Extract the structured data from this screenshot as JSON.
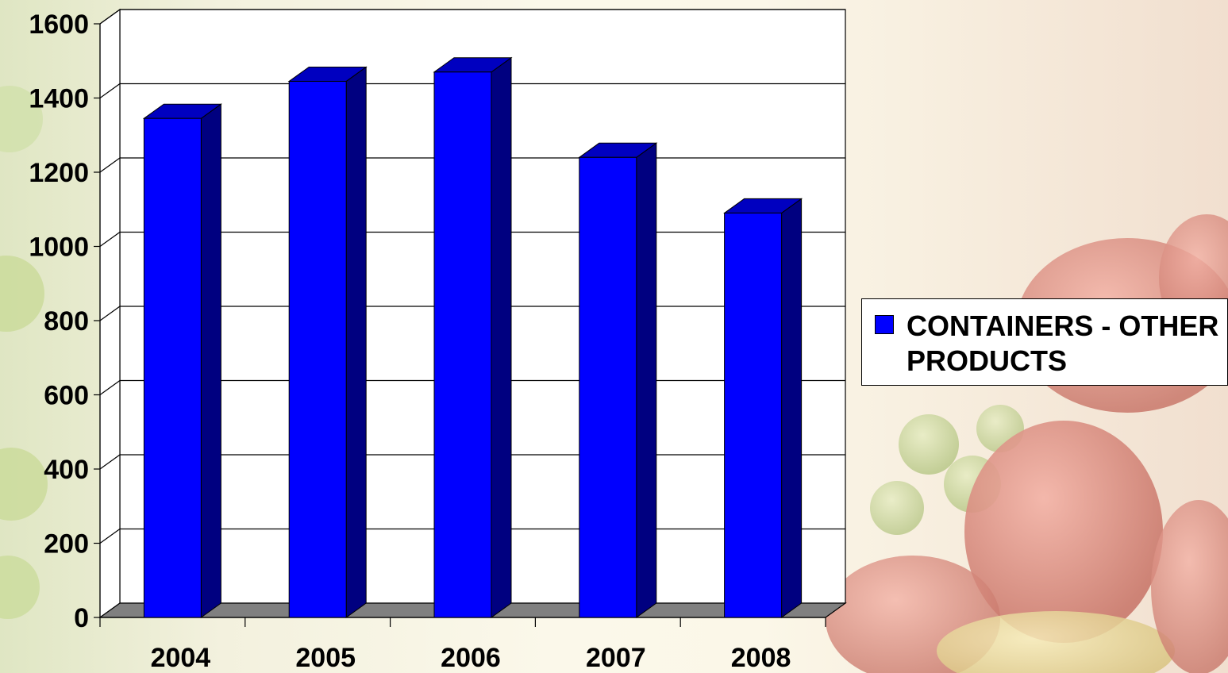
{
  "chart_data": {
    "type": "bar",
    "title": "",
    "xlabel": "",
    "ylabel": "",
    "categories": [
      "2004",
      "2005",
      "2006",
      "2007",
      "2008"
    ],
    "series": [
      {
        "name": "CONTAINERS - OTHER PRODUCTS",
        "values": [
          1345,
          1445,
          1470,
          1240,
          1090
        ],
        "color": "#0000ff"
      }
    ],
    "ylim": [
      0,
      1600
    ],
    "yticks": [
      "0",
      "200",
      "400",
      "600",
      "800",
      "1000",
      "1200",
      "1400",
      "1600"
    ],
    "grid": true,
    "legend_position": "right",
    "style": "3d-column",
    "colors": {
      "bar_front": "#0000ff",
      "bar_side": "#000080",
      "bar_top": "#0000c0",
      "floor": "#808080",
      "plot_background": "#ffffff"
    }
  }
}
